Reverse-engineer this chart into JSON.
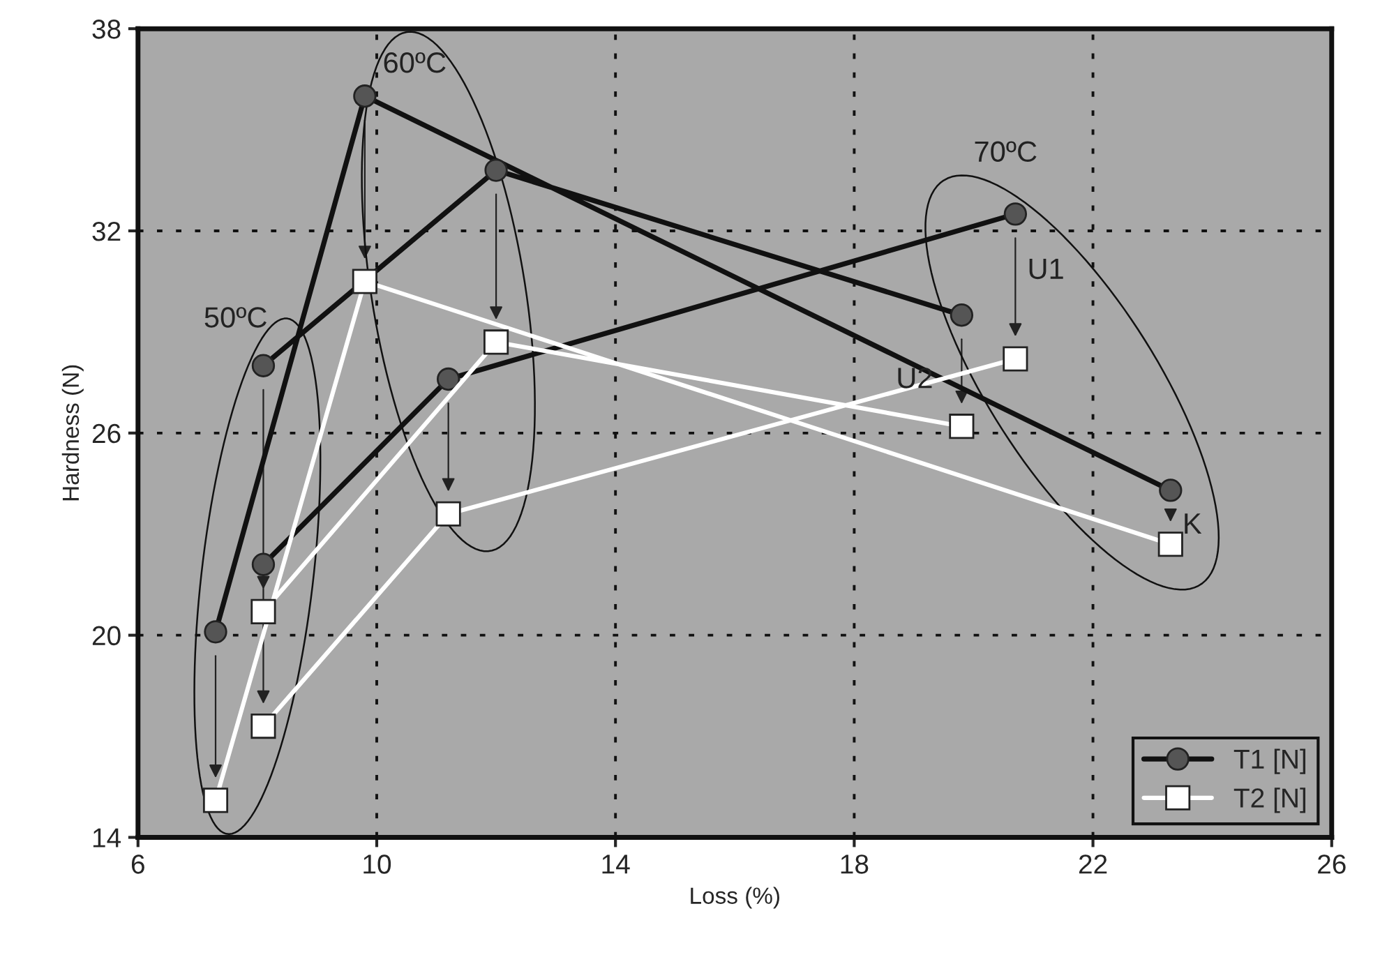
{
  "chart_data": {
    "type": "line",
    "xlabel": "Loss (%)",
    "ylabel": "Hardness (N)",
    "xlim": [
      6,
      26
    ],
    "xticks": [
      6,
      10,
      14,
      18,
      22,
      26
    ],
    "ylim": [
      14,
      38
    ],
    "yticks": [
      14,
      20,
      26,
      32,
      38
    ],
    "grid": true,
    "legend": "bottom right",
    "line_style": "solid",
    "series": [
      {
        "name": "T1 [N]",
        "color": "#555555",
        "marker": "circle",
        "x": [
          7.3,
          9.8,
          23.3,
          null,
          8.1,
          12.0,
          19.8,
          null,
          8.1,
          11.2,
          20.7
        ],
        "values": [
          20.1,
          36.0,
          24.3,
          null,
          28.0,
          33.8,
          29.5,
          null,
          22.1,
          27.6,
          32.5
        ]
      },
      {
        "name": "T2 [N]",
        "color": "#ffffff",
        "marker": "square",
        "x": [
          7.3,
          9.8,
          23.3,
          null,
          8.1,
          12.0,
          19.8,
          null,
          8.1,
          11.2,
          20.7
        ],
        "values": [
          15.1,
          30.5,
          22.7,
          null,
          20.7,
          28.7,
          26.2,
          null,
          17.3,
          23.6,
          28.2
        ]
      }
    ],
    "annotations": [
      "50ºC",
      "60ºC",
      "70ºC",
      "U1",
      "U2",
      "K"
    ]
  }
}
